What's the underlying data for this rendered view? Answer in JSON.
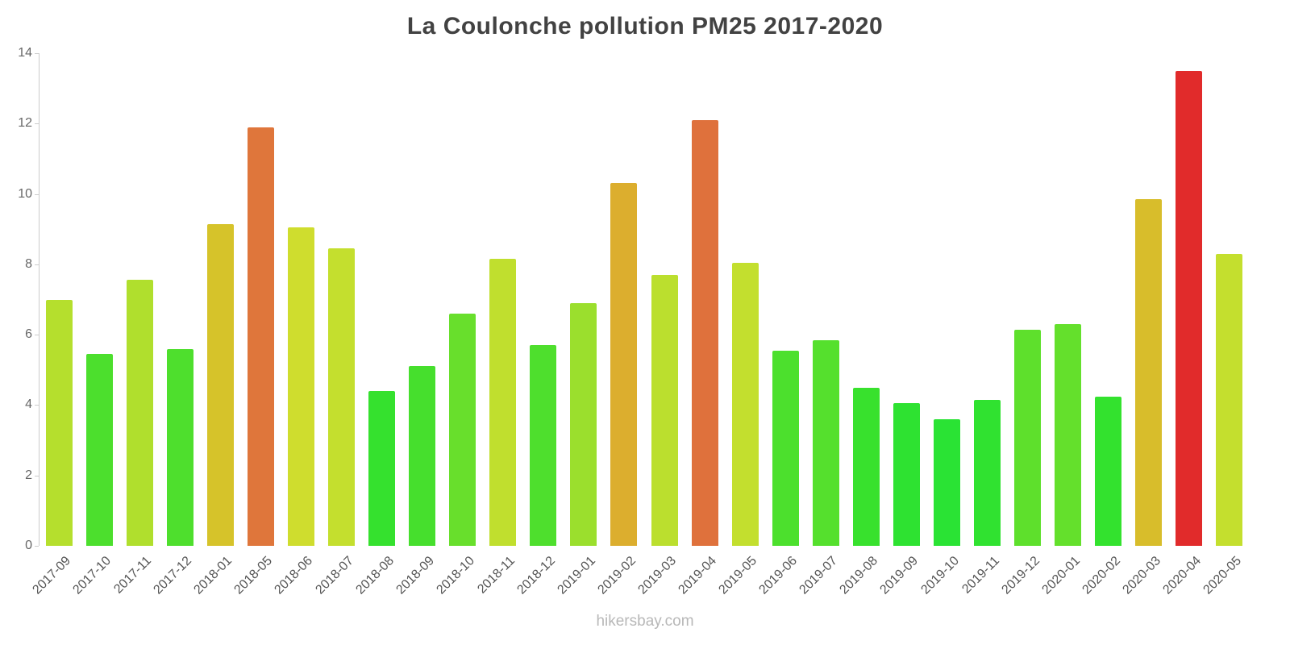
{
  "title": "La Coulonche pollution PM25 2017-2020",
  "footer": "hikersbay.com",
  "chart_data": {
    "type": "bar",
    "title": "La Coulonche pollution PM25 2017-2020",
    "xlabel": "",
    "ylabel": "",
    "ylim": [
      0,
      14
    ],
    "yticks": [
      0,
      2,
      4,
      6,
      8,
      10,
      12,
      14
    ],
    "grid": false,
    "legend": false,
    "categories": [
      "2017-09",
      "2017-10",
      "2017-11",
      "2017-12",
      "2018-01",
      "2018-05",
      "2018-06",
      "2018-07",
      "2018-08",
      "2018-09",
      "2018-10",
      "2018-11",
      "2018-12",
      "2019-01",
      "2019-02",
      "2019-03",
      "2019-04",
      "2019-05",
      "2019-06",
      "2019-07",
      "2019-08",
      "2019-09",
      "2019-10",
      "2019-11",
      "2019-12",
      "2020-01",
      "2020-02",
      "2020-03",
      "2020-04",
      "2020-05"
    ],
    "values": [
      7.0,
      5.45,
      7.55,
      5.6,
      9.15,
      11.9,
      9.05,
      8.45,
      4.4,
      5.1,
      6.6,
      8.15,
      5.7,
      6.9,
      10.3,
      7.7,
      12.1,
      8.05,
      5.55,
      5.85,
      4.5,
      4.05,
      3.6,
      4.15,
      6.15,
      6.3,
      4.25,
      9.85,
      13.5,
      8.3
    ],
    "colors": [
      "#b5df2d",
      "#4cdf2d",
      "#b0df2d",
      "#4edf2d",
      "#d6c32a",
      "#df763b",
      "#cfdd2e",
      "#c4df2e",
      "#35e12e",
      "#46df2d",
      "#68df2c",
      "#c0df2e",
      "#4edf2d",
      "#9bdf2d",
      "#dcae2e",
      "#bbdf2e",
      "#df713c",
      "#c3df2e",
      "#4ce02d",
      "#55e02d",
      "#38e12d",
      "#2ee231",
      "#2ae334",
      "#30e230",
      "#5ee02c",
      "#64e02c",
      "#33e22e",
      "#d8bd2b",
      "#e12b2b",
      "#c4df2e"
    ]
  }
}
